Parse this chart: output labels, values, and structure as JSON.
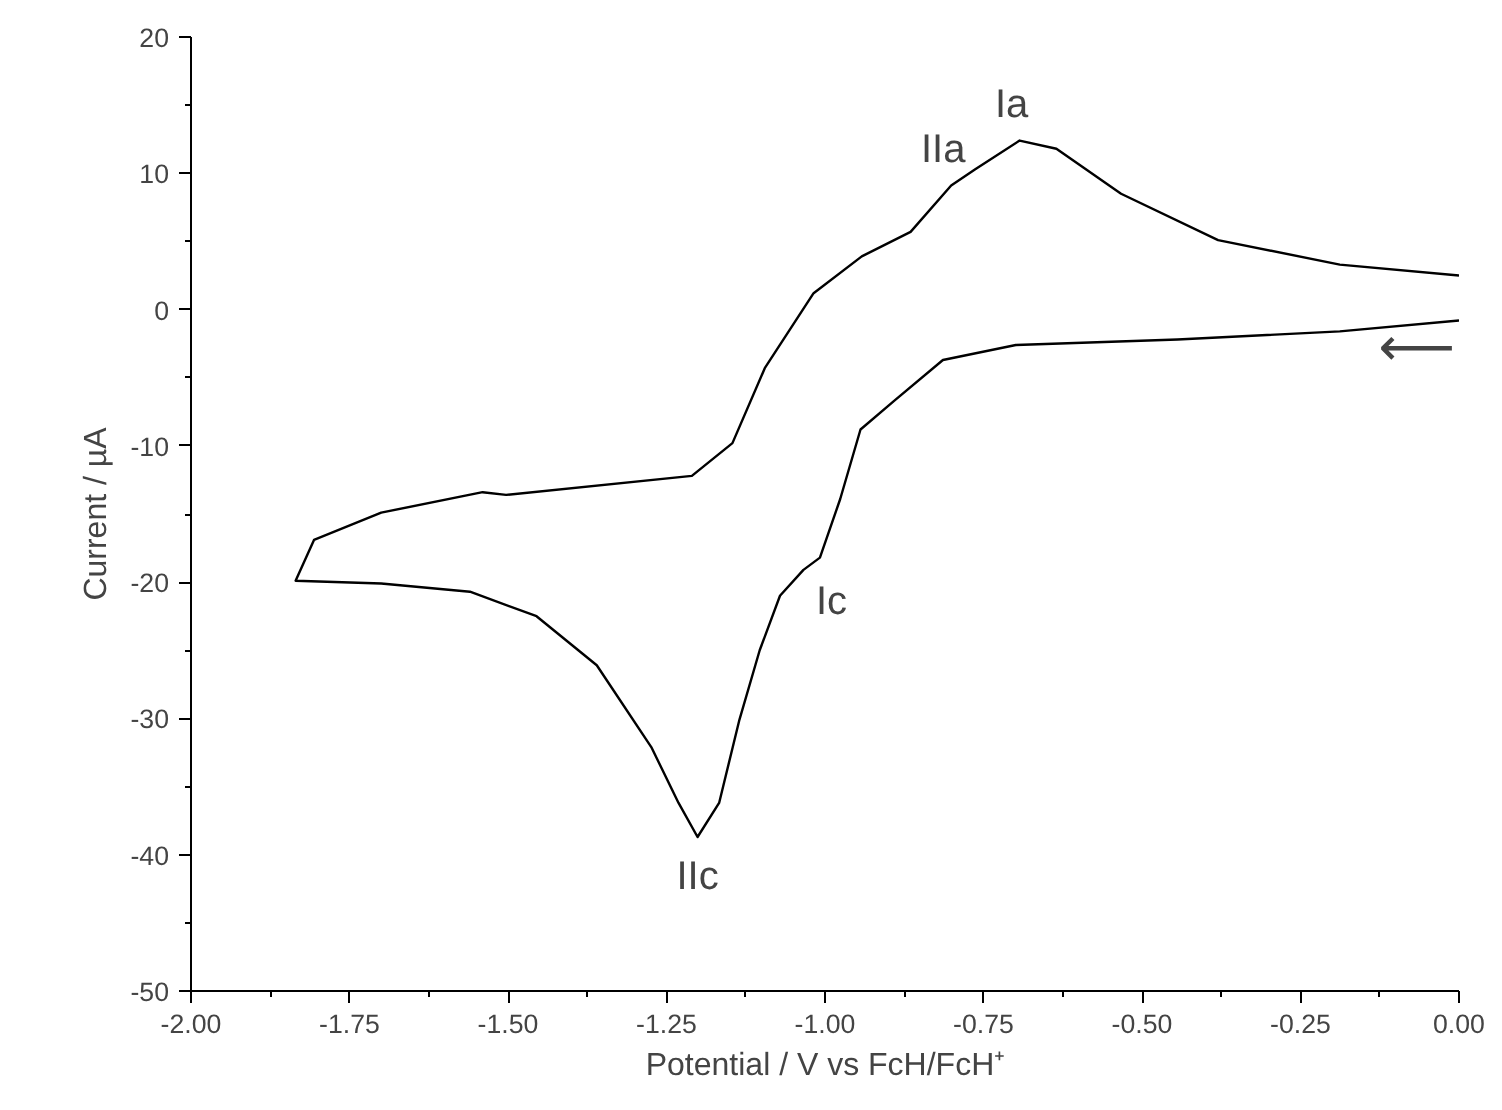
{
  "chart_data": {
    "type": "line",
    "xlabel": "Potential / V vs FcH/FcH⁺",
    "ylabel": "Current / µA",
    "xlim": [
      -2.0,
      0.0
    ],
    "ylim": [
      -50,
      20
    ],
    "xticks": [
      {
        "value": -2.0,
        "label": "-2.00"
      },
      {
        "value": -1.75,
        "label": "-1.75"
      },
      {
        "value": -1.5,
        "label": "-1.50"
      },
      {
        "value": -1.25,
        "label": "-1.25"
      },
      {
        "value": -1.0,
        "label": "-1.00"
      },
      {
        "value": -0.75,
        "label": "-0.75"
      },
      {
        "value": -0.5,
        "label": "-0.50"
      },
      {
        "value": -0.25,
        "label": "-0.25"
      },
      {
        "value": 0.0,
        "label": "0.00"
      }
    ],
    "yticks": [
      -50,
      -40,
      -30,
      -20,
      -10,
      0,
      10,
      20
    ],
    "grid": false,
    "marker": "none",
    "line_style": "solid",
    "series": [
      {
        "color": "#000000",
        "x": [
          0.0,
          -0.188,
          -0.444,
          -0.699,
          -0.814,
          -0.891,
          -0.944,
          -0.976,
          -1.008,
          -1.034,
          -1.071,
          -1.103,
          -1.135,
          -1.167,
          -1.201,
          -1.231,
          -1.274,
          -1.36,
          -1.455,
          -1.56,
          -1.7,
          -1.835,
          -1.806,
          -1.7,
          -1.54,
          -1.503,
          -1.21,
          -1.146,
          -1.095,
          -1.018,
          -0.942,
          -0.865,
          -0.801,
          -0.763,
          -0.693,
          -0.635,
          -0.533,
          -0.38,
          -0.188,
          0.0
        ],
        "values": [
          -0.8,
          -1.6,
          -2.2,
          -2.6,
          -3.7,
          -6.7,
          -8.8,
          -13.9,
          -18.2,
          -19.1,
          -21.0,
          -25.0,
          -30.1,
          -36.2,
          -38.7,
          -36.2,
          -32.1,
          -26.1,
          -22.5,
          -20.7,
          -20.1,
          -19.9,
          -16.9,
          -14.9,
          -13.4,
          -13.6,
          -12.2,
          -9.8,
          -4.3,
          1.2,
          3.9,
          5.7,
          9.1,
          10.3,
          12.4,
          11.8,
          8.5,
          5.1,
          3.3,
          2.5
        ]
      }
    ],
    "annotations": [
      {
        "text": "Ia",
        "x": -0.693,
        "y": 12.4
      },
      {
        "text": "IIa",
        "x": -0.801,
        "y": 9.1
      },
      {
        "text": "Ic",
        "x": -1.034,
        "y": -19.1
      },
      {
        "text": "IIc",
        "x": -1.201,
        "y": -38.7
      },
      "⟵"
    ]
  }
}
